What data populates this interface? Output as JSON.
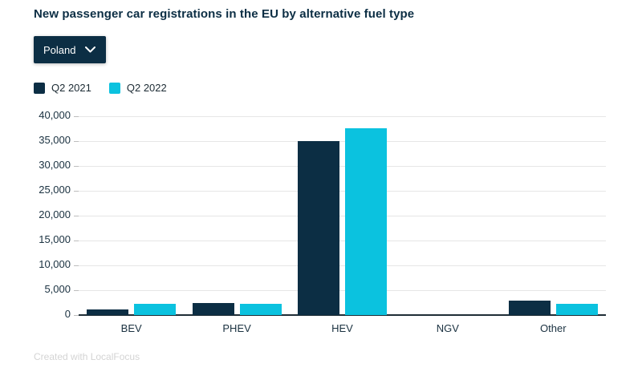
{
  "title": "New passenger car registrations in the EU by alternative fuel type",
  "filter": {
    "selected": "Poland"
  },
  "footer": {
    "credit": "Created with LocalFocus"
  },
  "colors": {
    "series_q2_2021": "#0c2e44",
    "series_q2_2022": "#0bc2df",
    "title_text": "#0c2e44",
    "axis_text": "#1a3140",
    "gridline": "#e6e6e6",
    "axis_line": "#1f2d36",
    "dropdown_bg": "#0c2e44",
    "dropdown_text": "#ffffff",
    "credit_text": "#d4d4d4",
    "background": "#ffffff"
  },
  "chart_data": {
    "type": "bar",
    "title": "New passenger car registrations in the EU by alternative fuel type",
    "categories": [
      "BEV",
      "PHEV",
      "HEV",
      "NGV",
      "Other"
    ],
    "series": [
      {
        "name": "Q2 2021",
        "color": "#0c2e44",
        "values": [
          1200,
          2400,
          35000,
          0,
          2900
        ]
      },
      {
        "name": "Q2 2022",
        "color": "#0bc2df",
        "values": [
          2300,
          2200,
          37600,
          0,
          2200
        ]
      }
    ],
    "xlabel": "",
    "ylabel": "",
    "ylim": [
      0,
      40000
    ],
    "yticks": [
      0,
      5000,
      10000,
      15000,
      20000,
      25000,
      30000,
      35000,
      40000
    ],
    "ytick_labels": [
      "0",
      "5,000",
      "10,000",
      "15,000",
      "20,000",
      "25,000",
      "30,000",
      "35,000",
      "40,000"
    ],
    "grid": true,
    "legend_position": "top-left"
  }
}
